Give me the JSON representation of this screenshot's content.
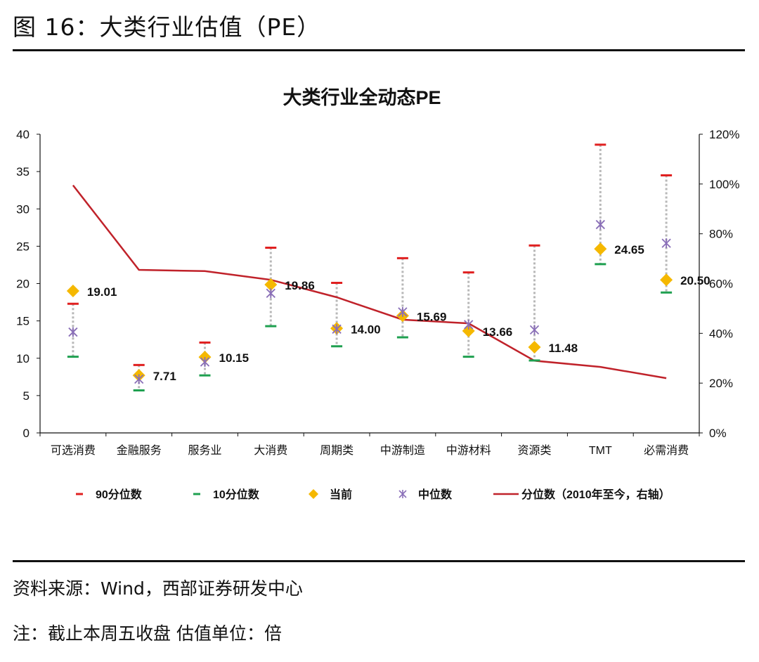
{
  "figure_title": "图 16：大类行业估值（PE）",
  "source": "资料来源：Wind，西部证券研发中心",
  "footnote": "注：截止本周五收盘 估值单位：倍",
  "colors": {
    "p90": "#e02020",
    "p10": "#1fa050",
    "current": "#f5b800",
    "median": "#8a6fb8",
    "percentile_line": "#c0222a",
    "range_line": "#b8b8b8"
  },
  "chart_data": {
    "type": "line",
    "title": "大类行业全动态PE",
    "categories": [
      "可选消费",
      "金融服务",
      "服务业",
      "大消费",
      "周期类",
      "中游制造",
      "中游材料",
      "资源类",
      "TMT",
      "必需消费"
    ],
    "left_axis": {
      "ylim": [
        0,
        40
      ],
      "ticks": [
        "0",
        "5",
        "10",
        "15",
        "20",
        "25",
        "30",
        "35",
        "40"
      ]
    },
    "right_axis": {
      "ylim": [
        0,
        120
      ],
      "ticks": [
        "0%",
        "20%",
        "40%",
        "60%",
        "80%",
        "100%",
        "120%"
      ]
    },
    "series": [
      {
        "name": "90分位数",
        "kind": "marker-dash",
        "axis": "left",
        "values": [
          17.3,
          9.1,
          12.1,
          24.8,
          20.1,
          23.4,
          21.5,
          25.1,
          38.6,
          34.5
        ]
      },
      {
        "name": "10分位数",
        "kind": "marker-dash",
        "axis": "left",
        "values": [
          10.2,
          5.7,
          7.7,
          14.3,
          11.6,
          12.8,
          10.2,
          9.7,
          22.6,
          18.8
        ]
      },
      {
        "name": "当前",
        "kind": "marker-diamond",
        "axis": "left",
        "values": [
          19.01,
          7.71,
          10.15,
          19.86,
          14.0,
          15.69,
          13.66,
          11.48,
          24.65,
          20.5
        ],
        "labels": [
          "19.01",
          "7.71",
          "10.15",
          "19.86",
          "14.00",
          "15.69",
          "13.66",
          "11.48",
          "24.65",
          "20.50"
        ]
      },
      {
        "name": "中位数",
        "kind": "marker-star",
        "axis": "left",
        "values": [
          13.5,
          7.2,
          9.5,
          18.7,
          13.9,
          16.2,
          14.5,
          13.8,
          27.9,
          25.4
        ]
      },
      {
        "name": "分位数（2010年至今，右轴）",
        "kind": "line",
        "axis": "right",
        "values": [
          99.5,
          65.5,
          65.0,
          61.5,
          54.5,
          45.5,
          44.0,
          29.0,
          26.5,
          22.0
        ]
      }
    ],
    "legend_position": "bottom",
    "grid": false
  }
}
